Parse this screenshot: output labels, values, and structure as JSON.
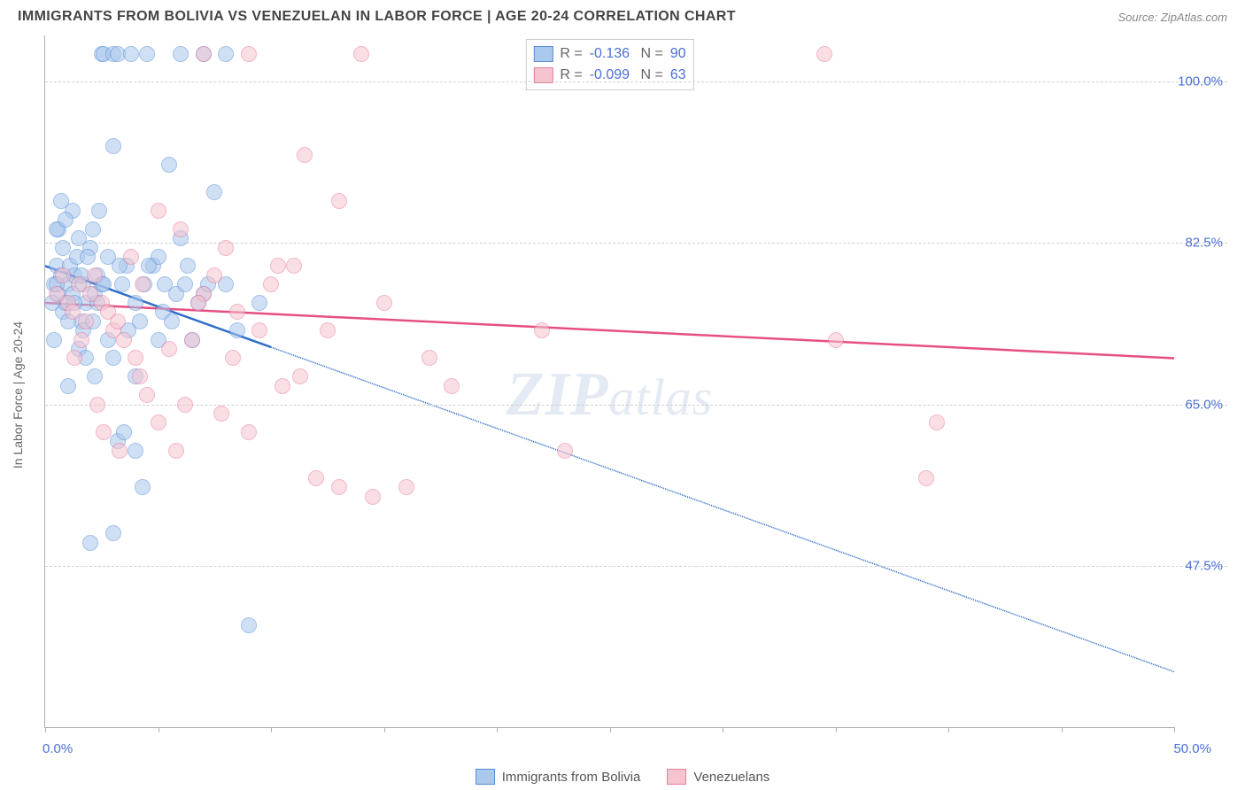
{
  "title": "IMMIGRANTS FROM BOLIVIA VS VENEZUELAN IN LABOR FORCE | AGE 20-24 CORRELATION CHART",
  "source": "Source: ZipAtlas.com",
  "watermark": {
    "z": "ZIP",
    "rest": "atlas"
  },
  "ylabel": "In Labor Force | Age 20-24",
  "chart": {
    "type": "scatter",
    "background_color": "#ffffff",
    "grid_color": "#d0d0d0",
    "axis_color": "#b0b0b0",
    "tick_label_color": "#4a6fd8",
    "axis_label_color": "#666666",
    "xlim": [
      0,
      50
    ],
    "ylim": [
      30,
      105
    ],
    "xticks": [
      0,
      5,
      10,
      15,
      20,
      25,
      30,
      35,
      40,
      45,
      50
    ],
    "yticks": [
      47.5,
      65.0,
      82.5,
      100.0
    ],
    "xtick_labels": {
      "0": "0.0%",
      "50": "50.0%"
    },
    "ytick_labels": [
      "47.5%",
      "65.0%",
      "82.5%",
      "100.0%"
    ],
    "marker_size": 18,
    "marker_opacity": 0.55,
    "series": [
      {
        "name": "Immigrants from Bolivia",
        "color": "#a9c8ed",
        "border_color": "#5a8fd6",
        "R": "-0.136",
        "N": "90",
        "trend": {
          "color": "#2f6dc9",
          "width": 2.5,
          "solid_until_x": 10,
          "y_at_x0": 80,
          "y_at_xmax": 36
        },
        "points": [
          [
            0.4,
            78
          ],
          [
            0.5,
            80
          ],
          [
            0.6,
            77
          ],
          [
            0.7,
            79
          ],
          [
            0.8,
            75
          ],
          [
            0.9,
            76
          ],
          [
            1.0,
            78
          ],
          [
            1.1,
            80
          ],
          [
            1.2,
            77
          ],
          [
            1.3,
            79
          ],
          [
            1.4,
            81
          ],
          [
            1.5,
            83
          ],
          [
            1.6,
            74
          ],
          [
            1.7,
            78
          ],
          [
            1.8,
            76
          ],
          [
            2.0,
            82
          ],
          [
            2.1,
            84
          ],
          [
            2.2,
            77
          ],
          [
            2.3,
            79
          ],
          [
            2.4,
            86
          ],
          [
            2.5,
            103
          ],
          [
            2.6,
            103
          ],
          [
            2.8,
            72
          ],
          [
            3.0,
            103
          ],
          [
            3.0,
            70
          ],
          [
            3.0,
            93
          ],
          [
            3.2,
            103
          ],
          [
            3.4,
            78
          ],
          [
            3.6,
            80
          ],
          [
            3.8,
            103
          ],
          [
            4.0,
            76
          ],
          [
            4.0,
            68
          ],
          [
            4.0,
            60
          ],
          [
            4.2,
            74
          ],
          [
            4.4,
            78
          ],
          [
            4.5,
            103
          ],
          [
            4.8,
            80
          ],
          [
            5.0,
            81
          ],
          [
            5.0,
            72
          ],
          [
            5.2,
            75
          ],
          [
            5.5,
            91
          ],
          [
            5.8,
            77
          ],
          [
            6.0,
            103
          ],
          [
            6.0,
            83
          ],
          [
            6.2,
            78
          ],
          [
            6.5,
            72
          ],
          [
            7.0,
            103
          ],
          [
            7.0,
            77
          ],
          [
            7.5,
            88
          ],
          [
            8.0,
            78
          ],
          [
            8.0,
            103
          ],
          [
            8.5,
            73
          ],
          [
            9.0,
            41
          ],
          [
            9.5,
            76
          ],
          [
            2.0,
            50
          ],
          [
            3.0,
            51
          ],
          [
            3.2,
            61
          ],
          [
            1.0,
            67
          ],
          [
            0.8,
            82
          ],
          [
            0.6,
            84
          ],
          [
            1.2,
            86
          ],
          [
            1.5,
            71
          ],
          [
            1.7,
            73
          ],
          [
            0.5,
            84
          ],
          [
            0.3,
            76
          ],
          [
            0.4,
            72
          ],
          [
            1.8,
            70
          ],
          [
            2.2,
            68
          ],
          [
            2.5,
            78
          ],
          [
            2.8,
            81
          ],
          [
            0.9,
            85
          ],
          [
            0.7,
            87
          ],
          [
            0.5,
            78
          ],
          [
            1.0,
            74
          ],
          [
            1.3,
            76
          ],
          [
            1.6,
            79
          ],
          [
            1.9,
            81
          ],
          [
            2.1,
            74
          ],
          [
            2.3,
            76
          ],
          [
            2.6,
            78
          ],
          [
            3.3,
            80
          ],
          [
            3.5,
            62
          ],
          [
            3.7,
            73
          ],
          [
            4.3,
            56
          ],
          [
            4.6,
            80
          ],
          [
            5.3,
            78
          ],
          [
            5.6,
            74
          ],
          [
            6.3,
            80
          ],
          [
            6.8,
            76
          ],
          [
            7.2,
            78
          ]
        ]
      },
      {
        "name": "Venezuelans",
        "color": "#f5c4cf",
        "border_color": "#e87ea0",
        "R": "-0.099",
        "N": "63",
        "trend": {
          "color": "#e74f82",
          "width": 2.5,
          "solid_until_x": 50,
          "y_at_x0": 76,
          "y_at_xmax": 70
        },
        "points": [
          [
            0.5,
            77
          ],
          [
            0.8,
            79
          ],
          [
            1.0,
            76
          ],
          [
            1.2,
            75
          ],
          [
            1.5,
            78
          ],
          [
            1.8,
            74
          ],
          [
            2.0,
            77
          ],
          [
            2.2,
            79
          ],
          [
            2.5,
            76
          ],
          [
            2.8,
            75
          ],
          [
            3.0,
            73
          ],
          [
            3.2,
            74
          ],
          [
            3.5,
            72
          ],
          [
            4.0,
            70
          ],
          [
            4.2,
            68
          ],
          [
            4.5,
            66
          ],
          [
            5.0,
            63
          ],
          [
            5.0,
            86
          ],
          [
            5.5,
            71
          ],
          [
            6.0,
            84
          ],
          [
            6.5,
            72
          ],
          [
            7.0,
            77
          ],
          [
            7.0,
            103
          ],
          [
            7.5,
            79
          ],
          [
            8.0,
            82
          ],
          [
            8.5,
            75
          ],
          [
            9.0,
            103
          ],
          [
            9.0,
            62
          ],
          [
            9.5,
            73
          ],
          [
            10.0,
            78
          ],
          [
            10.5,
            67
          ],
          [
            11.0,
            80
          ],
          [
            11.5,
            92
          ],
          [
            12.0,
            57
          ],
          [
            12.5,
            73
          ],
          [
            13.0,
            56
          ],
          [
            13.0,
            87
          ],
          [
            14.0,
            103
          ],
          [
            14.5,
            55
          ],
          [
            15.0,
            76
          ],
          [
            16.0,
            56
          ],
          [
            17.0,
            70
          ],
          [
            18.0,
            67
          ],
          [
            22.0,
            73
          ],
          [
            23.0,
            60
          ],
          [
            34.5,
            103
          ],
          [
            35.0,
            72
          ],
          [
            39.0,
            57
          ],
          [
            39.5,
            63
          ],
          [
            5.8,
            60
          ],
          [
            6.2,
            65
          ],
          [
            7.8,
            64
          ],
          [
            8.3,
            70
          ],
          [
            3.8,
            81
          ],
          [
            4.3,
            78
          ],
          [
            6.8,
            76
          ],
          [
            10.3,
            80
          ],
          [
            11.3,
            68
          ],
          [
            1.3,
            70
          ],
          [
            1.6,
            72
          ],
          [
            2.3,
            65
          ],
          [
            2.6,
            62
          ],
          [
            3.3,
            60
          ]
        ]
      }
    ]
  },
  "bottom_legend": [
    {
      "swatch": "blue",
      "label": "Immigrants from Bolivia"
    },
    {
      "swatch": "pink",
      "label": "Venezuelans"
    }
  ]
}
